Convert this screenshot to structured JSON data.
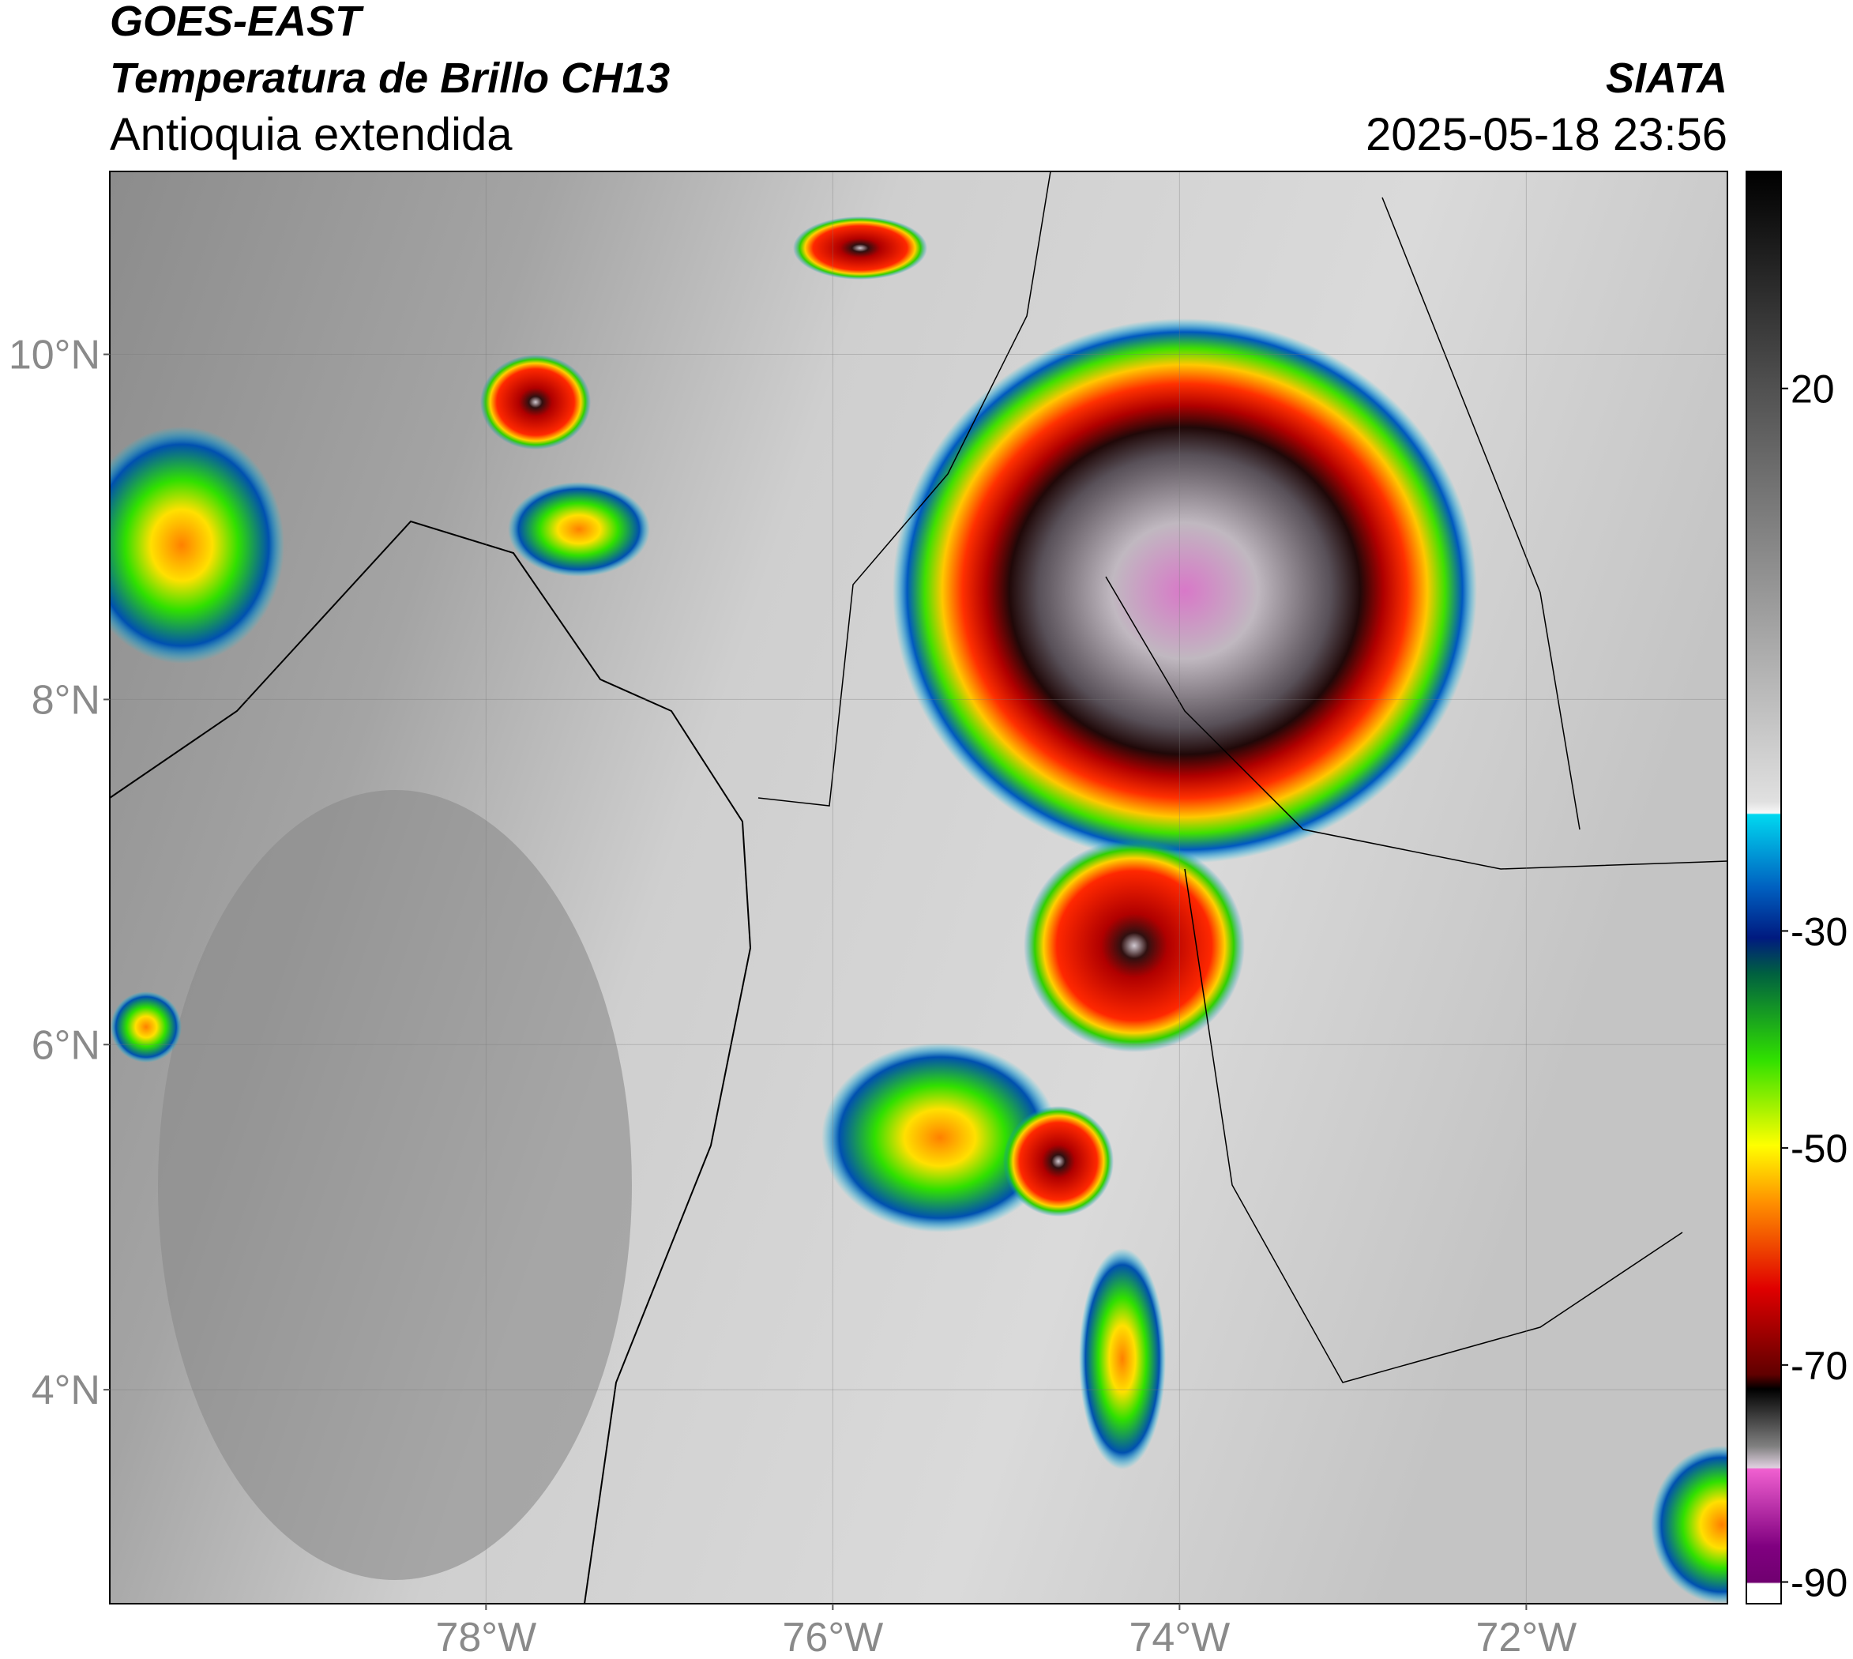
{
  "header": {
    "title": "GOES-EAST",
    "subtitle": "Temperatura de Brillo CH13",
    "region": "Antioquia extendida",
    "source": "SIATA",
    "datetime": "2025-05-18 23:56"
  },
  "map": {
    "xlim": [
      -80.17,
      -70.84
    ],
    "ylim": [
      2.76,
      11.06
    ],
    "xticks": [
      {
        "value": -78,
        "label": "78°W"
      },
      {
        "value": -76,
        "label": "76°W"
      },
      {
        "value": -74,
        "label": "74°W"
      },
      {
        "value": -72,
        "label": "72°W"
      }
    ],
    "yticks": [
      {
        "value": 4,
        "label": "4°N"
      },
      {
        "value": 6,
        "label": "6°N"
      },
      {
        "value": 8,
        "label": "8°N"
      },
      {
        "value": 10,
        "label": "10°N"
      }
    ]
  },
  "colorbar": {
    "lim": [
      -92,
      40
    ],
    "ticks": [
      20,
      -30,
      -50,
      -70,
      -90
    ]
  }
}
